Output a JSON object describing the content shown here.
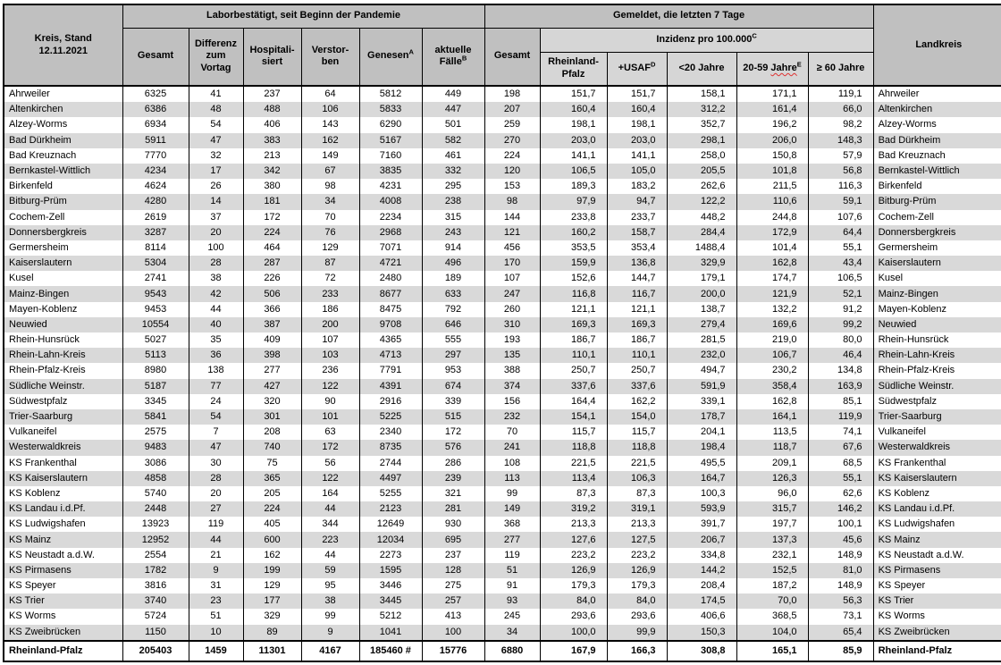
{
  "colors": {
    "header_bg": "#c0c0c0",
    "subheader_bg": "#d6d6d6",
    "stripe_bg": "#d9d9d9",
    "border": "#000000",
    "squiggle": "#e03131"
  },
  "table": {
    "corner_header": "Kreis, Stand\n12.11.2021",
    "landkreis_header": "Landkreis",
    "groups": {
      "labor": "Laborbestätigt, seit Beginn der Pandemie",
      "gemeldet": "Gemeldet, die letzten 7 Tage",
      "inzidenz": "Inzidenz pro 100.000",
      "inzidenz_sup": "C"
    },
    "labor_columns": {
      "gesamt": "Gesamt",
      "differenz": "Differenz\nzum\nVortag",
      "hospitalisiert": "Hospitali-\nsiert",
      "verstorben": "Verstor-\nben",
      "genesen": "Genesen",
      "genesen_sup": "A",
      "aktuelle": "aktuelle\nFälle",
      "aktuelle_sup": "B"
    },
    "week_columns": {
      "gesamt": "Gesamt",
      "rlp": "Rheinland-\nPfalz",
      "usaf": "+USAF",
      "usaf_sup": "D",
      "u20": "<20 Jahre",
      "a20_59_prefix": "20-59 ",
      "a20_59_wavy": "Jahre",
      "a20_59_sup": "E",
      "o60": "≥ 60 Jahre"
    },
    "rows": [
      [
        "Ahrweiler",
        "6325",
        "41",
        "237",
        "64",
        "5812",
        "449",
        "198",
        "151,7",
        "151,7",
        "158,1",
        "171,1",
        "119,1",
        "Ahrweiler"
      ],
      [
        "Altenkirchen",
        "6386",
        "48",
        "488",
        "106",
        "5833",
        "447",
        "207",
        "160,4",
        "160,4",
        "312,2",
        "161,4",
        "66,0",
        "Altenkirchen"
      ],
      [
        "Alzey-Worms",
        "6934",
        "54",
        "406",
        "143",
        "6290",
        "501",
        "259",
        "198,1",
        "198,1",
        "352,7",
        "196,2",
        "98,2",
        "Alzey-Worms"
      ],
      [
        "Bad Dürkheim",
        "5911",
        "47",
        "383",
        "162",
        "5167",
        "582",
        "270",
        "203,0",
        "203,0",
        "298,1",
        "206,0",
        "148,3",
        "Bad Dürkheim"
      ],
      [
        "Bad Kreuznach",
        "7770",
        "32",
        "213",
        "149",
        "7160",
        "461",
        "224",
        "141,1",
        "141,1",
        "258,0",
        "150,8",
        "57,9",
        "Bad Kreuznach"
      ],
      [
        "Bernkastel-Wittlich",
        "4234",
        "17",
        "342",
        "67",
        "3835",
        "332",
        "120",
        "106,5",
        "105,0",
        "205,5",
        "101,8",
        "56,8",
        "Bernkastel-Wittlich"
      ],
      [
        "Birkenfeld",
        "4624",
        "26",
        "380",
        "98",
        "4231",
        "295",
        "153",
        "189,3",
        "183,2",
        "262,6",
        "211,5",
        "116,3",
        "Birkenfeld"
      ],
      [
        "Bitburg-Prüm",
        "4280",
        "14",
        "181",
        "34",
        "4008",
        "238",
        "98",
        "97,9",
        "94,7",
        "122,2",
        "110,6",
        "59,1",
        "Bitburg-Prüm"
      ],
      [
        "Cochem-Zell",
        "2619",
        "37",
        "172",
        "70",
        "2234",
        "315",
        "144",
        "233,8",
        "233,7",
        "448,2",
        "244,8",
        "107,6",
        "Cochem-Zell"
      ],
      [
        "Donnersbergkreis",
        "3287",
        "20",
        "224",
        "76",
        "2968",
        "243",
        "121",
        "160,2",
        "158,7",
        "284,4",
        "172,9",
        "64,4",
        "Donnersbergkreis"
      ],
      [
        "Germersheim",
        "8114",
        "100",
        "464",
        "129",
        "7071",
        "914",
        "456",
        "353,5",
        "353,4",
        "1488,4",
        "101,4",
        "55,1",
        "Germersheim"
      ],
      [
        "Kaiserslautern",
        "5304",
        "28",
        "287",
        "87",
        "4721",
        "496",
        "170",
        "159,9",
        "136,8",
        "329,9",
        "162,8",
        "43,4",
        "Kaiserslautern"
      ],
      [
        "Kusel",
        "2741",
        "38",
        "226",
        "72",
        "2480",
        "189",
        "107",
        "152,6",
        "144,7",
        "179,1",
        "174,7",
        "106,5",
        "Kusel"
      ],
      [
        "Mainz-Bingen",
        "9543",
        "42",
        "506",
        "233",
        "8677",
        "633",
        "247",
        "116,8",
        "116,7",
        "200,0",
        "121,9",
        "52,1",
        "Mainz-Bingen"
      ],
      [
        "Mayen-Koblenz",
        "9453",
        "44",
        "366",
        "186",
        "8475",
        "792",
        "260",
        "121,1",
        "121,1",
        "138,7",
        "132,2",
        "91,2",
        "Mayen-Koblenz"
      ],
      [
        "Neuwied",
        "10554",
        "40",
        "387",
        "200",
        "9708",
        "646",
        "310",
        "169,3",
        "169,3",
        "279,4",
        "169,6",
        "99,2",
        "Neuwied"
      ],
      [
        "Rhein-Hunsrück",
        "5027",
        "35",
        "409",
        "107",
        "4365",
        "555",
        "193",
        "186,7",
        "186,7",
        "281,5",
        "219,0",
        "80,0",
        "Rhein-Hunsrück"
      ],
      [
        "Rhein-Lahn-Kreis",
        "5113",
        "36",
        "398",
        "103",
        "4713",
        "297",
        "135",
        "110,1",
        "110,1",
        "232,0",
        "106,7",
        "46,4",
        "Rhein-Lahn-Kreis"
      ],
      [
        "Rhein-Pfalz-Kreis",
        "8980",
        "138",
        "277",
        "236",
        "7791",
        "953",
        "388",
        "250,7",
        "250,7",
        "494,7",
        "230,2",
        "134,8",
        "Rhein-Pfalz-Kreis"
      ],
      [
        "Südliche Weinstr.",
        "5187",
        "77",
        "427",
        "122",
        "4391",
        "674",
        "374",
        "337,6",
        "337,6",
        "591,9",
        "358,4",
        "163,9",
        "Südliche Weinstr."
      ],
      [
        "Südwestpfalz",
        "3345",
        "24",
        "320",
        "90",
        "2916",
        "339",
        "156",
        "164,4",
        "162,2",
        "339,1",
        "162,8",
        "85,1",
        "Südwestpfalz"
      ],
      [
        "Trier-Saarburg",
        "5841",
        "54",
        "301",
        "101",
        "5225",
        "515",
        "232",
        "154,1",
        "154,0",
        "178,7",
        "164,1",
        "119,9",
        "Trier-Saarburg"
      ],
      [
        "Vulkaneifel",
        "2575",
        "7",
        "208",
        "63",
        "2340",
        "172",
        "70",
        "115,7",
        "115,7",
        "204,1",
        "113,5",
        "74,1",
        "Vulkaneifel"
      ],
      [
        "Westerwaldkreis",
        "9483",
        "47",
        "740",
        "172",
        "8735",
        "576",
        "241",
        "118,8",
        "118,8",
        "198,4",
        "118,7",
        "67,6",
        "Westerwaldkreis"
      ],
      [
        "KS Frankenthal",
        "3086",
        "30",
        "75",
        "56",
        "2744",
        "286",
        "108",
        "221,5",
        "221,5",
        "495,5",
        "209,1",
        "68,5",
        "KS Frankenthal"
      ],
      [
        "KS Kaiserslautern",
        "4858",
        "28",
        "365",
        "122",
        "4497",
        "239",
        "113",
        "113,4",
        "106,3",
        "164,7",
        "126,3",
        "55,1",
        "KS Kaiserslautern"
      ],
      [
        "KS Koblenz",
        "5740",
        "20",
        "205",
        "164",
        "5255",
        "321",
        "99",
        "87,3",
        "87,3",
        "100,3",
        "96,0",
        "62,6",
        "KS Koblenz"
      ],
      [
        "KS Landau i.d.Pf.",
        "2448",
        "27",
        "224",
        "44",
        "2123",
        "281",
        "149",
        "319,2",
        "319,1",
        "593,9",
        "315,7",
        "146,2",
        "KS Landau i.d.Pf."
      ],
      [
        "KS Ludwigshafen",
        "13923",
        "119",
        "405",
        "344",
        "12649",
        "930",
        "368",
        "213,3",
        "213,3",
        "391,7",
        "197,7",
        "100,1",
        "KS Ludwigshafen"
      ],
      [
        "KS Mainz",
        "12952",
        "44",
        "600",
        "223",
        "12034",
        "695",
        "277",
        "127,6",
        "127,5",
        "206,7",
        "137,3",
        "45,6",
        "KS Mainz"
      ],
      [
        "KS Neustadt a.d.W.",
        "2554",
        "21",
        "162",
        "44",
        "2273",
        "237",
        "119",
        "223,2",
        "223,2",
        "334,8",
        "232,1",
        "148,9",
        "KS Neustadt a.d.W."
      ],
      [
        "KS Pirmasens",
        "1782",
        "9",
        "199",
        "59",
        "1595",
        "128",
        "51",
        "126,9",
        "126,9",
        "144,2",
        "152,5",
        "81,0",
        "KS Pirmasens"
      ],
      [
        "KS Speyer",
        "3816",
        "31",
        "129",
        "95",
        "3446",
        "275",
        "91",
        "179,3",
        "179,3",
        "208,4",
        "187,2",
        "148,9",
        "KS Speyer"
      ],
      [
        "KS Trier",
        "3740",
        "23",
        "177",
        "38",
        "3445",
        "257",
        "93",
        "84,0",
        "84,0",
        "174,5",
        "70,0",
        "56,3",
        "KS Trier"
      ],
      [
        "KS Worms",
        "5724",
        "51",
        "329",
        "99",
        "5212",
        "413",
        "245",
        "293,6",
        "293,6",
        "406,6",
        "368,5",
        "73,1",
        "KS Worms"
      ],
      [
        "KS Zweibrücken",
        "1150",
        "10",
        "89",
        "9",
        "1041",
        "100",
        "34",
        "100,0",
        "99,9",
        "150,3",
        "104,0",
        "65,4",
        "KS Zweibrücken"
      ]
    ],
    "summary": [
      "Rheinland-Pfalz",
      "205403",
      "1459",
      "11301",
      "4167",
      "185460 #",
      "15776",
      "6880",
      "167,9",
      "166,3",
      "308,8",
      "165,1",
      "85,9",
      "Rheinland-Pfalz"
    ]
  }
}
